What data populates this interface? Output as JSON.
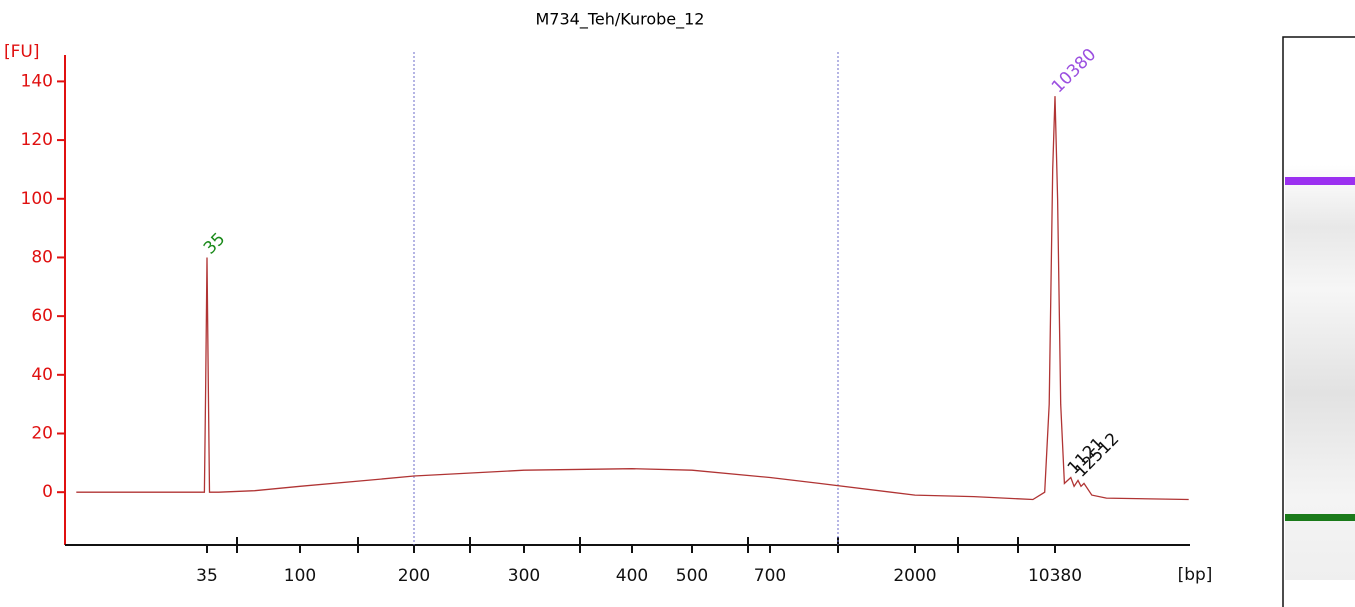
{
  "chart_data": {
    "type": "line",
    "title": "M734_Teh/Kurobe_12",
    "y_label": "[FU]",
    "x_label": "[bp]",
    "ylim": [
      -18,
      149
    ],
    "yticks": [
      0,
      20,
      40,
      60,
      80,
      100,
      120,
      140
    ],
    "xticks": [
      35,
      null,
      100,
      null,
      200,
      null,
      300,
      null,
      400,
      500,
      null,
      700,
      null,
      2000,
      null,
      null,
      10380
    ],
    "axis_color": "#e01010",
    "series": [
      {
        "name": "Kurobe_12",
        "color": "#b03434",
        "x": [
          8,
          20,
          30,
          33,
          34,
          34.5,
          35,
          35.5,
          36,
          40,
          60,
          100,
          150,
          200,
          300,
          400,
          500,
          700,
          1000,
          2000,
          4000,
          8000,
          9200,
          9700,
          10100,
          10380,
          10700,
          11100,
          11600,
          12500,
          13000,
          13600,
          14100,
          14600,
          16000,
          19000,
          50000
        ],
        "values": [
          0,
          0,
          0,
          0,
          0,
          37,
          80,
          37,
          0,
          0,
          0.5,
          2,
          4,
          5.5,
          7.5,
          8,
          7.5,
          5,
          3,
          -1,
          -1.5,
          -2.5,
          0,
          30,
          110,
          135,
          100,
          30,
          3,
          5,
          2,
          4,
          2,
          3,
          -1,
          -2,
          -2.5
        ]
      }
    ],
    "peak_labels": [
      {
        "label": "35",
        "x": 35,
        "color": "#1a8a1a"
      },
      {
        "label": "10380",
        "x": 10380,
        "color": "#9b4fe0"
      },
      {
        "label": "1121",
        "x": 12500,
        "color": "#111111"
      },
      {
        "label": "12512",
        "x": 13600,
        "color": "#111111"
      }
    ]
  }
}
